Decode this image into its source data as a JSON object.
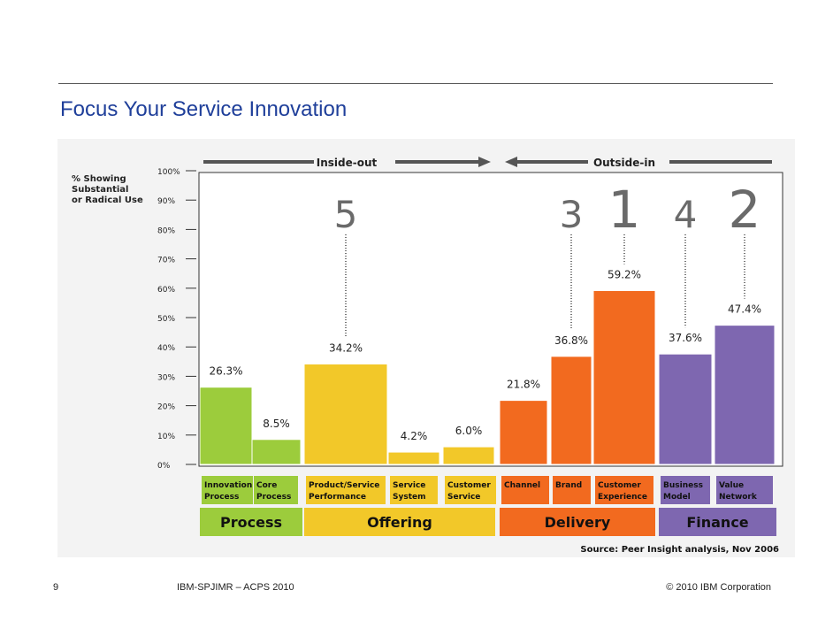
{
  "slide": {
    "title": "Focus Your Service Innovation",
    "page_number": "9",
    "footer_center": "IBM-SPJIMR – ACPS 2010",
    "footer_right": "© 2010 IBM Corporation"
  },
  "colors": {
    "process": "#9ccc3c",
    "offering": "#f2c829",
    "delivery": "#f26a1f",
    "finance": "#7e67b0",
    "title": "#1f3f9a"
  },
  "chart_data": {
    "type": "bar",
    "ylabel_lines": [
      "% Showing",
      "Substantial",
      "or Radical Use"
    ],
    "yticks": [
      "100%",
      "90%",
      "80%",
      "70%",
      "60%",
      "50%",
      "40%",
      "30%",
      "20%",
      "10%",
      "0%"
    ],
    "ylim": [
      0,
      100
    ],
    "direction_labels": {
      "left": "Inside-out",
      "right": "Outside-in"
    },
    "categories": [
      {
        "label_lines": [
          "Innovation",
          "Process"
        ],
        "value": 26.3,
        "value_label": "26.3%",
        "group": "process",
        "rank": ""
      },
      {
        "label_lines": [
          "Core",
          "Process"
        ],
        "value": 8.5,
        "value_label": "8.5%",
        "group": "process",
        "rank": ""
      },
      {
        "label_lines": [
          "Product/Service",
          "Performance"
        ],
        "value": 34.2,
        "value_label": "34.2%",
        "group": "offering",
        "rank": "5"
      },
      {
        "label_lines": [
          "Service",
          "System"
        ],
        "value": 4.2,
        "value_label": "4.2%",
        "group": "offering",
        "rank": ""
      },
      {
        "label_lines": [
          "Customer",
          "Service"
        ],
        "value": 6.0,
        "value_label": "6.0%",
        "group": "offering",
        "rank": ""
      },
      {
        "label_lines": [
          "Channel"
        ],
        "value": 21.8,
        "value_label": "21.8%",
        "group": "delivery",
        "rank": ""
      },
      {
        "label_lines": [
          "Brand"
        ],
        "value": 36.8,
        "value_label": "36.8%",
        "group": "delivery",
        "rank": "3"
      },
      {
        "label_lines": [
          "Customer",
          "Experience"
        ],
        "value": 59.2,
        "value_label": "59.2%",
        "group": "delivery",
        "rank": "1"
      },
      {
        "label_lines": [
          "Business",
          "Model"
        ],
        "value": 37.6,
        "value_label": "37.6%",
        "group": "finance",
        "rank": "4"
      },
      {
        "label_lines": [
          "Value",
          "Network"
        ],
        "value": 47.4,
        "value_label": "47.4%",
        "group": "finance",
        "rank": "2"
      }
    ],
    "groups": [
      {
        "key": "process",
        "label": "Process"
      },
      {
        "key": "offering",
        "label": "Offering"
      },
      {
        "key": "delivery",
        "label": "Delivery"
      },
      {
        "key": "finance",
        "label": "Finance"
      }
    ],
    "source": "Source: Peer Insight analysis, Nov 2006"
  }
}
